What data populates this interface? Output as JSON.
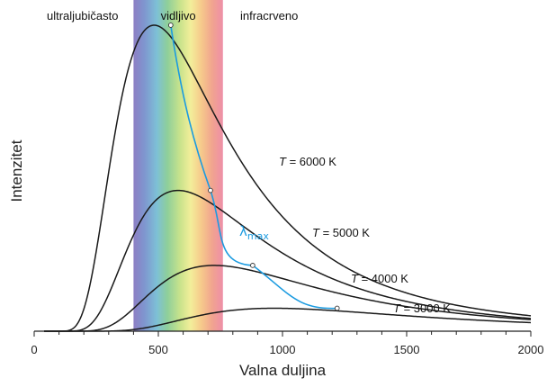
{
  "chart_data": {
    "type": "line",
    "xlabel": "Valna duljina",
    "ylabel": "Intenzitet",
    "xlim": [
      0,
      2000
    ],
    "xticks": [
      0,
      500,
      1000,
      1500,
      2000
    ],
    "regions": [
      {
        "name": "ultraljubičasto",
        "range": [
          0,
          400
        ]
      },
      {
        "name": "vidljivo",
        "range": [
          400,
          760
        ]
      },
      {
        "name": "infracrveno",
        "range": [
          760,
          2000
        ]
      }
    ],
    "series": [
      {
        "name": "T = 6000 K",
        "temperature_K": 6000,
        "peak": {
          "x": 550,
          "y": 1.0
        }
      },
      {
        "name": "T = 5000 K",
        "temperature_K": 5000,
        "peak": {
          "x": 710,
          "y": 0.46
        }
      },
      {
        "name": "T = 4000 K",
        "temperature_K": 4000,
        "peak": {
          "x": 880,
          "y": 0.215
        }
      },
      {
        "name": "T = 3000 K",
        "temperature_K": 3000,
        "peak": {
          "x": 1220,
          "y": 0.075
        }
      }
    ],
    "peak_line_label": {
      "symbol": "λ",
      "subscript": "max"
    },
    "colors": {
      "curves": "#1a1a1a",
      "peak_line": "#1b9be0",
      "axis": "#222222"
    }
  }
}
